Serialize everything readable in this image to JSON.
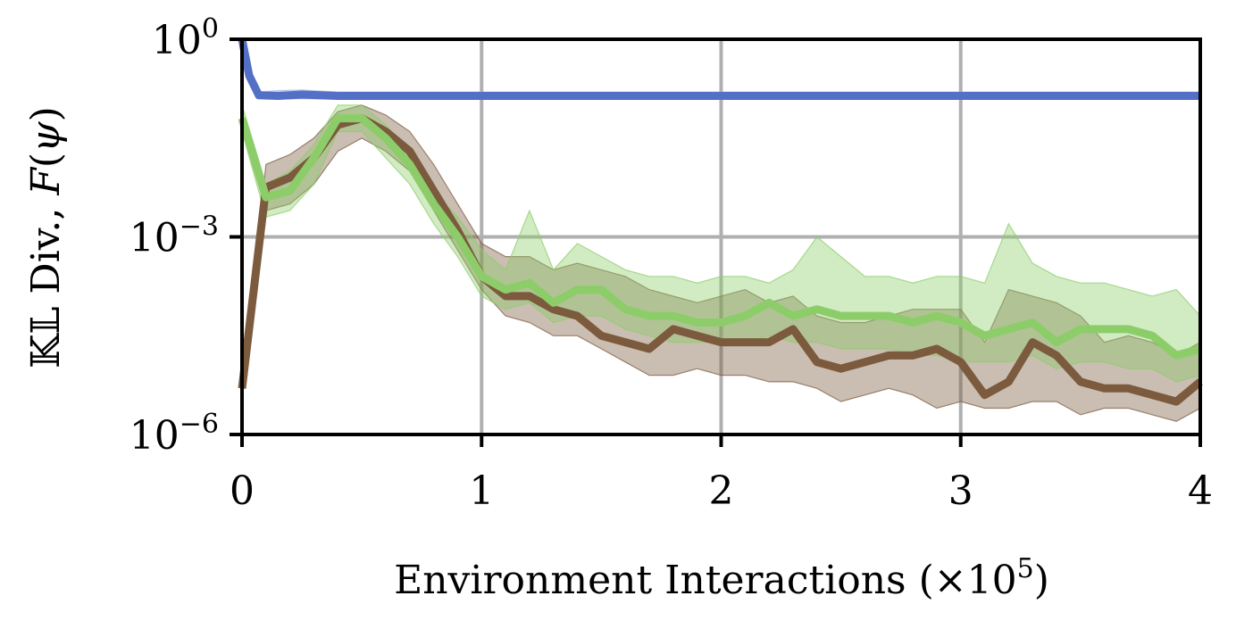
{
  "chart_data": {
    "type": "line",
    "xlabel": "Environment Interactions (×10⁵)",
    "ylabel": "𝕂𝕃 Div., F(ψ)",
    "xlim": [
      0,
      4
    ],
    "ylim_log10": [
      -6,
      0
    ],
    "yscale": "log",
    "grid": true,
    "x_ticks": [
      {
        "value": 0,
        "label": "0"
      },
      {
        "value": 1,
        "label": "1"
      },
      {
        "value": 2,
        "label": "2"
      },
      {
        "value": 3,
        "label": "3"
      },
      {
        "value": 4,
        "label": "4"
      }
    ],
    "y_ticks": [
      {
        "exp": 0,
        "base": "10",
        "sup": "0"
      },
      {
        "exp": -3,
        "base": "10",
        "sup": "−3"
      },
      {
        "exp": -6,
        "base": "10",
        "sup": "−6"
      }
    ],
    "x": [
      0,
      0.1,
      0.2,
      0.3,
      0.4,
      0.5,
      0.6,
      0.7,
      0.8,
      0.9,
      1.0,
      1.1,
      1.2,
      1.3,
      1.4,
      1.5,
      1.6,
      1.7,
      1.8,
      1.9,
      2.0,
      2.1,
      2.2,
      2.3,
      2.4,
      2.5,
      2.6,
      2.7,
      2.8,
      2.9,
      3.0,
      3.1,
      3.2,
      3.3,
      3.4,
      3.5,
      3.6,
      3.7,
      3.8,
      3.9,
      4.0
    ],
    "series": [
      {
        "color": "#5470c6",
        "band_color": "#9fb0e3",
        "x": [
          0,
          0.03,
          0.07,
          0.15,
          0.25,
          0.4,
          0.6,
          0.8,
          1.0,
          1.5,
          2.0,
          2.5,
          3.0,
          3.5,
          4.0
        ],
        "log10_values": [
          0.0,
          -0.55,
          -0.85,
          -0.86,
          -0.84,
          -0.86,
          -0.86,
          -0.86,
          -0.86,
          -0.86,
          -0.86,
          -0.86,
          -0.86,
          -0.86,
          -0.86
        ],
        "log10_lower": [
          0.0,
          -0.57,
          -0.89,
          -0.91,
          -0.9,
          -0.91,
          -0.91,
          -0.91,
          -0.91,
          -0.91,
          -0.91,
          -0.91,
          -0.91,
          -0.91,
          -0.91
        ],
        "log10_upper": [
          0.0,
          -0.52,
          -0.8,
          -0.78,
          -0.77,
          -0.8,
          -0.8,
          -0.8,
          -0.8,
          -0.8,
          -0.8,
          -0.8,
          -0.8,
          -0.8,
          -0.8
        ]
      },
      {
        "color": "#7b5a3d",
        "band_color": "#7b5a3d",
        "log10_values": [
          -5.3,
          -2.25,
          -2.1,
          -1.8,
          -1.3,
          -1.2,
          -1.4,
          -1.7,
          -2.3,
          -2.9,
          -3.6,
          -3.9,
          -3.9,
          -4.1,
          -4.2,
          -4.5,
          -4.6,
          -4.7,
          -4.4,
          -4.5,
          -4.6,
          -4.6,
          -4.6,
          -4.4,
          -4.9,
          -5.0,
          -4.9,
          -4.8,
          -4.8,
          -4.7,
          -4.9,
          -5.4,
          -5.2,
          -4.6,
          -4.8,
          -5.2,
          -5.3,
          -5.3,
          -5.4,
          -5.5,
          -5.2
        ],
        "log10_lower": [
          -5.3,
          -2.6,
          -2.5,
          -2.2,
          -1.7,
          -1.5,
          -1.7,
          -2.0,
          -2.6,
          -3.2,
          -3.8,
          -4.2,
          -4.3,
          -4.5,
          -4.5,
          -4.7,
          -4.9,
          -5.1,
          -5.1,
          -5.0,
          -5.1,
          -5.1,
          -5.2,
          -5.2,
          -5.3,
          -5.5,
          -5.4,
          -5.3,
          -5.4,
          -5.6,
          -5.5,
          -5.6,
          -5.6,
          -5.5,
          -5.5,
          -5.7,
          -5.6,
          -5.6,
          -5.7,
          -5.8,
          -5.6
        ],
        "log10_upper": [
          -5.3,
          -1.9,
          -1.75,
          -1.5,
          -1.1,
          -1.0,
          -1.15,
          -1.4,
          -1.9,
          -2.5,
          -3.1,
          -3.3,
          -3.3,
          -3.5,
          -3.4,
          -3.5,
          -3.6,
          -3.8,
          -3.9,
          -4.0,
          -3.9,
          -3.8,
          -4.0,
          -3.9,
          -4.2,
          -4.3,
          -4.3,
          -4.2,
          -4.1,
          -4.1,
          -4.1,
          -4.6,
          -3.8,
          -3.9,
          -4.0,
          -4.2,
          -4.6,
          -4.5,
          -4.6,
          -4.8,
          -4.6
        ]
      },
      {
        "color": "#8ccd6a",
        "band_color": "#8ccd6a",
        "log10_values": [
          -1.2,
          -2.4,
          -2.3,
          -1.8,
          -1.2,
          -1.2,
          -1.5,
          -1.9,
          -2.5,
          -3.0,
          -3.6,
          -3.8,
          -3.7,
          -4.0,
          -3.8,
          -3.8,
          -4.1,
          -4.2,
          -4.2,
          -4.3,
          -4.3,
          -4.2,
          -4.0,
          -4.2,
          -4.1,
          -4.2,
          -4.2,
          -4.2,
          -4.3,
          -4.2,
          -4.3,
          -4.5,
          -4.4,
          -4.3,
          -4.6,
          -4.4,
          -4.4,
          -4.4,
          -4.5,
          -4.8,
          -4.7
        ],
        "log10_lower": [
          -1.4,
          -2.7,
          -2.6,
          -2.2,
          -1.4,
          -1.4,
          -1.8,
          -2.2,
          -2.8,
          -3.3,
          -3.9,
          -4.1,
          -4.0,
          -4.3,
          -4.2,
          -4.2,
          -4.4,
          -4.5,
          -4.6,
          -4.6,
          -4.6,
          -4.6,
          -4.5,
          -4.6,
          -4.6,
          -4.7,
          -4.7,
          -4.7,
          -4.8,
          -4.8,
          -4.9,
          -4.9,
          -4.9,
          -4.8,
          -5.0,
          -4.9,
          -4.9,
          -5.0,
          -5.0,
          -5.2,
          -5.1
        ],
        "log10_upper": [
          -1.0,
          -2.2,
          -2.0,
          -1.6,
          -1.0,
          -1.0,
          -1.3,
          -1.7,
          -2.3,
          -2.7,
          -3.2,
          -3.5,
          -2.6,
          -3.5,
          -3.1,
          -3.3,
          -3.5,
          -3.6,
          -3.6,
          -3.7,
          -3.6,
          -3.6,
          -3.7,
          -3.5,
          -3.0,
          -3.3,
          -3.6,
          -3.6,
          -3.7,
          -3.6,
          -3.6,
          -3.7,
          -2.8,
          -3.4,
          -3.6,
          -3.7,
          -3.7,
          -3.8,
          -3.9,
          -3.8,
          -4.2
        ]
      }
    ]
  }
}
